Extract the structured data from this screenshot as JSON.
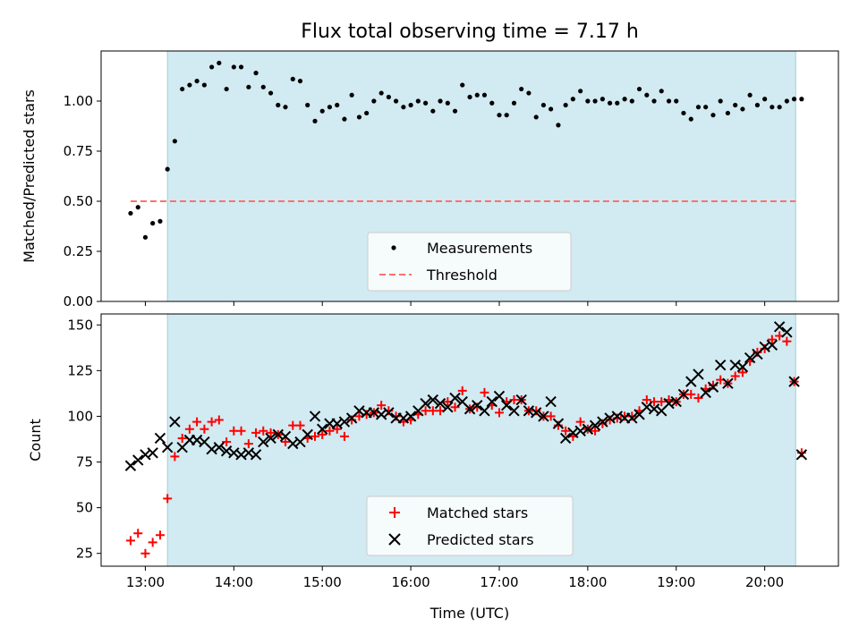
{
  "chart_data": [
    {
      "type": "scatter",
      "title": "Flux total observing time = 7.17 h",
      "xlabel": "",
      "ylabel": "Matched/Predicted stars",
      "xlim": [
        12.5,
        20.833
      ],
      "ylim": [
        0,
        1.25
      ],
      "x_ticks": [
        13,
        14,
        15,
        16,
        17,
        18,
        19,
        20
      ],
      "y_ticks": [
        0.0,
        0.25,
        0.5,
        0.75,
        1.0
      ],
      "y_tick_labels": [
        "0.00",
        "0.25",
        "0.50",
        "0.75",
        "1.00"
      ],
      "shaded_interval": [
        13.25,
        20.35
      ],
      "shade_color": "#add8e6",
      "legend": {
        "position": "lower center",
        "entries": [
          "Measurements",
          "Threshold"
        ]
      },
      "series": [
        {
          "name": "Measurements",
          "marker": "dot",
          "color": "#000000",
          "x": [
            12.833,
            12.917,
            13.0,
            13.083,
            13.167,
            13.25,
            13.333,
            13.417,
            13.5,
            13.583,
            13.667,
            13.75,
            13.833,
            13.917,
            14.0,
            14.083,
            14.167,
            14.25,
            14.333,
            14.417,
            14.5,
            14.583,
            14.667,
            14.75,
            14.833,
            14.917,
            15.0,
            15.083,
            15.167,
            15.25,
            15.333,
            15.417,
            15.5,
            15.583,
            15.667,
            15.75,
            15.833,
            15.917,
            16.0,
            16.083,
            16.167,
            16.25,
            16.333,
            16.417,
            16.5,
            16.583,
            16.667,
            16.75,
            16.833,
            16.917,
            17.0,
            17.083,
            17.167,
            17.25,
            17.333,
            17.417,
            17.5,
            17.583,
            17.667,
            17.75,
            17.833,
            17.917,
            18.0,
            18.083,
            18.167,
            18.25,
            18.333,
            18.417,
            18.5,
            18.583,
            18.667,
            18.75,
            18.833,
            18.917,
            19.0,
            19.083,
            19.167,
            19.25,
            19.333,
            19.417,
            19.5,
            19.583,
            19.667,
            19.75,
            19.833,
            19.917,
            20.0,
            20.083,
            20.167,
            20.25,
            20.333,
            20.417
          ],
          "y": [
            0.44,
            0.47,
            0.32,
            0.39,
            0.4,
            0.66,
            0.8,
            1.06,
            1.08,
            1.1,
            1.08,
            1.17,
            1.19,
            1.06,
            1.17,
            1.17,
            1.07,
            1.14,
            1.07,
            1.04,
            0.98,
            0.97,
            1.11,
            1.1,
            0.98,
            0.9,
            0.95,
            0.97,
            0.98,
            0.91,
            1.03,
            0.92,
            0.94,
            1.0,
            1.04,
            1.02,
            1.0,
            0.97,
            0.98,
            1.0,
            0.99,
            0.95,
            1.0,
            0.99,
            0.95,
            1.08,
            1.02,
            1.03,
            1.03,
            0.99,
            0.93,
            0.93,
            0.99,
            1.06,
            1.04,
            0.92,
            0.98,
            0.96,
            0.88,
            0.98,
            1.01,
            1.05,
            1.0,
            1.0,
            1.01,
            0.99,
            0.99,
            1.01,
            1.0,
            1.06,
            1.03,
            1.0,
            1.05,
            1.0,
            1.0,
            0.94,
            0.91,
            0.97,
            0.97,
            0.93,
            1.0,
            0.94,
            0.98,
            0.96,
            1.03,
            0.98,
            1.01,
            0.97,
            0.97,
            1.0,
            1.01,
            1.01
          ]
        },
        {
          "name": "Threshold",
          "marker": "dashed-line",
          "color": "#ff7070",
          "x": [
            12.833,
            20.35
          ],
          "y": [
            0.5,
            0.5
          ]
        }
      ]
    },
    {
      "type": "scatter",
      "title": "",
      "xlabel": "Time (UTC)",
      "ylabel": "Count",
      "xlim": [
        12.5,
        20.833
      ],
      "ylim": [
        18,
        156
      ],
      "x_ticks": [
        13,
        14,
        15,
        16,
        17,
        18,
        19,
        20
      ],
      "x_tick_labels": [
        "13:00",
        "14:00",
        "15:00",
        "16:00",
        "17:00",
        "18:00",
        "19:00",
        "20:00"
      ],
      "y_ticks": [
        25,
        50,
        75,
        100,
        125,
        150
      ],
      "y_tick_labels": [
        "25",
        "50",
        "75",
        "100",
        "125",
        "150"
      ],
      "shaded_interval": [
        13.25,
        20.35
      ],
      "shade_color": "#add8e6",
      "legend": {
        "position": "lower center",
        "entries": [
          "Matched stars",
          "Predicted stars"
        ]
      },
      "series": [
        {
          "name": "Matched stars",
          "marker": "plus",
          "color": "#ff0000",
          "x": [
            12.833,
            12.917,
            13.0,
            13.083,
            13.167,
            13.25,
            13.333,
            13.417,
            13.5,
            13.583,
            13.667,
            13.75,
            13.833,
            13.917,
            14.0,
            14.083,
            14.167,
            14.25,
            14.333,
            14.417,
            14.5,
            14.583,
            14.667,
            14.75,
            14.833,
            14.917,
            15.0,
            15.083,
            15.167,
            15.25,
            15.333,
            15.417,
            15.5,
            15.583,
            15.667,
            15.75,
            15.833,
            15.917,
            16.0,
            16.083,
            16.167,
            16.25,
            16.333,
            16.417,
            16.5,
            16.583,
            16.667,
            16.75,
            16.833,
            16.917,
            17.0,
            17.083,
            17.167,
            17.25,
            17.333,
            17.417,
            17.5,
            17.583,
            17.667,
            17.75,
            17.833,
            17.917,
            18.0,
            18.083,
            18.167,
            18.25,
            18.333,
            18.417,
            18.5,
            18.583,
            18.667,
            18.75,
            18.833,
            18.917,
            19.0,
            19.083,
            19.167,
            19.25,
            19.333,
            19.417,
            19.5,
            19.583,
            19.667,
            19.75,
            19.833,
            19.917,
            20.0,
            20.083,
            20.167,
            20.25,
            20.333,
            20.417
          ],
          "y": [
            32,
            36,
            25,
            31,
            35,
            55,
            78,
            88,
            93,
            97,
            93,
            97,
            98,
            86,
            92,
            92,
            85,
            91,
            92,
            91,
            90,
            86,
            95,
            95,
            88,
            89,
            90,
            92,
            93,
            89,
            98,
            100,
            101,
            102,
            106,
            103,
            100,
            97,
            98,
            101,
            103,
            103,
            103,
            108,
            105,
            114,
            104,
            105,
            113,
            106,
            102,
            108,
            109,
            109,
            103,
            103,
            100,
            100,
            95,
            92,
            89,
            97,
            93,
            92,
            96,
            98,
            99,
            100,
            100,
            103,
            109,
            108,
            108,
            109,
            108,
            112,
            112,
            110,
            115,
            117,
            120,
            118,
            122,
            124,
            130,
            135,
            137,
            142,
            144,
            141,
            119,
            80
          ]
        },
        {
          "name": "Predicted stars",
          "marker": "x",
          "color": "#000000",
          "x": [
            12.833,
            12.917,
            13.0,
            13.083,
            13.167,
            13.25,
            13.333,
            13.417,
            13.5,
            13.583,
            13.667,
            13.75,
            13.833,
            13.917,
            14.0,
            14.083,
            14.167,
            14.25,
            14.333,
            14.417,
            14.5,
            14.583,
            14.667,
            14.75,
            14.833,
            14.917,
            15.0,
            15.083,
            15.167,
            15.25,
            15.333,
            15.417,
            15.5,
            15.583,
            15.667,
            15.75,
            15.833,
            15.917,
            16.0,
            16.083,
            16.167,
            16.25,
            16.333,
            16.417,
            16.5,
            16.583,
            16.667,
            16.75,
            16.833,
            16.917,
            17.0,
            17.083,
            17.167,
            17.25,
            17.333,
            17.417,
            17.5,
            17.583,
            17.667,
            17.75,
            17.833,
            17.917,
            18.0,
            18.083,
            18.167,
            18.25,
            18.333,
            18.417,
            18.5,
            18.583,
            18.667,
            18.75,
            18.833,
            18.917,
            19.0,
            19.083,
            19.167,
            19.25,
            19.333,
            19.417,
            19.5,
            19.583,
            19.667,
            19.75,
            19.833,
            19.917,
            20.0,
            20.083,
            20.167,
            20.25,
            20.333,
            20.417
          ],
          "y": [
            73,
            76,
            79,
            80,
            88,
            83,
            97,
            83,
            87,
            87,
            86,
            82,
            83,
            81,
            80,
            79,
            80,
            79,
            86,
            88,
            90,
            89,
            85,
            86,
            90,
            100,
            93,
            96,
            96,
            97,
            99,
            103,
            102,
            102,
            101,
            102,
            99,
            99,
            100,
            103,
            107,
            109,
            107,
            105,
            110,
            108,
            104,
            106,
            103,
            108,
            111,
            106,
            103,
            109,
            103,
            102,
            100,
            108,
            96,
            88,
            91,
            92,
            93,
            95,
            97,
            99,
            100,
            99,
            99,
            101,
            105,
            104,
            103,
            107,
            108,
            112,
            119,
            123,
            113,
            116,
            128,
            118,
            128,
            127,
            132,
            134,
            138,
            139,
            149,
            146,
            119,
            79
          ]
        }
      ]
    }
  ]
}
